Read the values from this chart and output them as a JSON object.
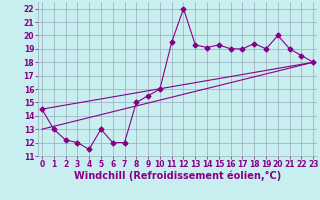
{
  "title": "",
  "xlabel": "Windchill (Refroidissement éolien,°C)",
  "x": [
    0,
    1,
    2,
    3,
    4,
    5,
    6,
    7,
    8,
    9,
    10,
    11,
    12,
    13,
    14,
    15,
    16,
    17,
    18,
    19,
    20,
    21,
    22,
    23
  ],
  "y": [
    14.5,
    13.0,
    12.2,
    12.0,
    11.5,
    13.0,
    12.0,
    12.0,
    15.0,
    15.5,
    16.0,
    19.5,
    22.0,
    19.3,
    19.1,
    19.3,
    19.0,
    19.0,
    19.4,
    19.0,
    20.0,
    19.0,
    18.5,
    18.0
  ],
  "line1_x": [
    0,
    23
  ],
  "line1_y": [
    13.0,
    18.0
  ],
  "line2_x": [
    0,
    23
  ],
  "line2_y": [
    14.5,
    18.0
  ],
  "line_color": "#880088",
  "bg_color": "#c8eef0",
  "grid_color": "#99aabb",
  "ylim": [
    11,
    22.5
  ],
  "xlim": [
    -0.3,
    23.3
  ],
  "yticks": [
    11,
    12,
    13,
    14,
    15,
    16,
    17,
    18,
    19,
    20,
    21,
    22
  ],
  "xticks": [
    0,
    1,
    2,
    3,
    4,
    5,
    6,
    7,
    8,
    9,
    10,
    11,
    12,
    13,
    14,
    15,
    16,
    17,
    18,
    19,
    20,
    21,
    22,
    23
  ],
  "tick_fontsize": 5.5,
  "xlabel_fontsize": 7.0,
  "marker": "D",
  "markersize": 2.5,
  "linewidth": 0.8
}
